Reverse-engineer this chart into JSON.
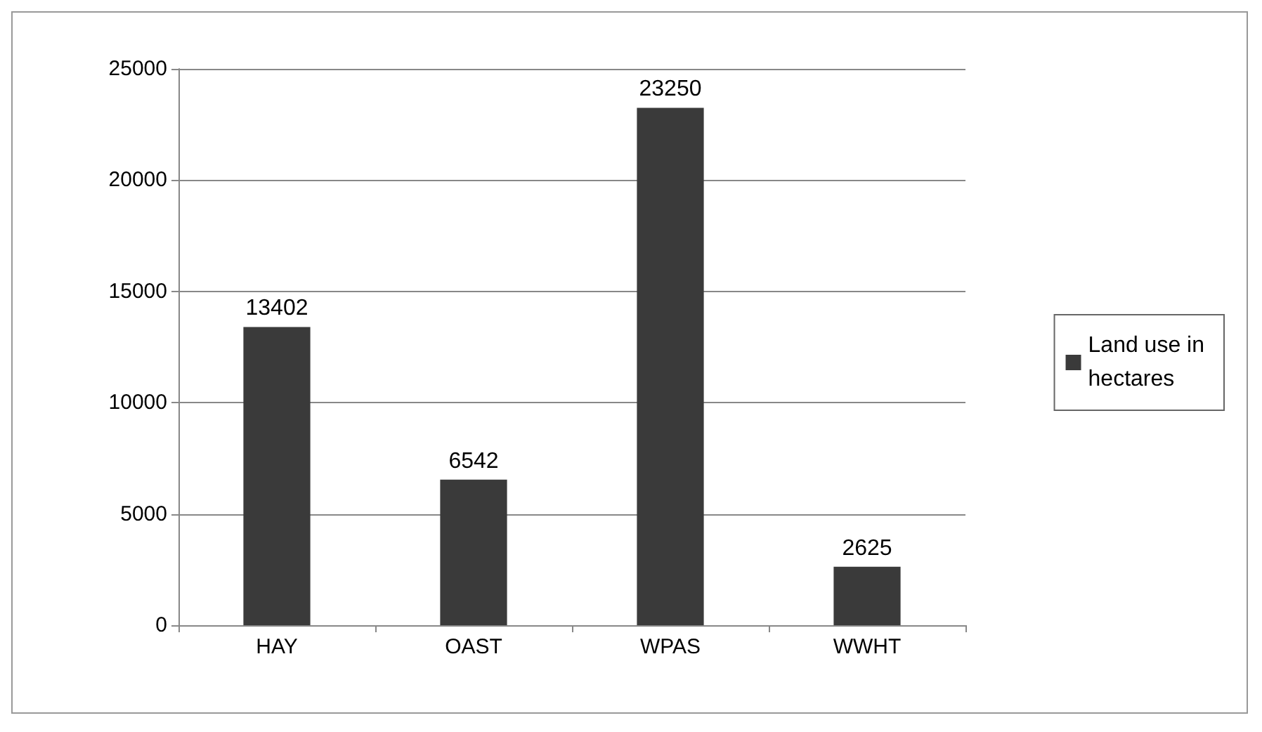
{
  "chart_data": {
    "type": "bar",
    "categories": [
      "HAY",
      "OAST",
      "WPAS",
      "WWHT"
    ],
    "series": [
      {
        "name": "Land use in hectares",
        "color": "#3a3a3a",
        "values": [
          13402,
          6542,
          23250,
          2625
        ]
      }
    ],
    "ylim": [
      0,
      25000
    ],
    "yticks": [
      0,
      5000,
      10000,
      15000,
      20000,
      25000
    ],
    "grid": "y",
    "legend": "right",
    "data_labels": true
  }
}
